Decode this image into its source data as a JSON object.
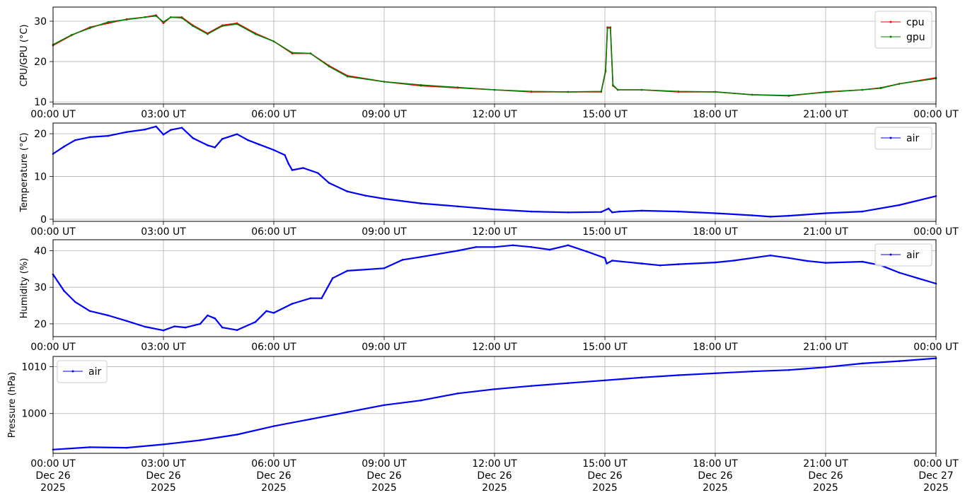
{
  "chart_data": [
    {
      "type": "line",
      "ylabel": "CPU/GPU (°C)",
      "xlim": [
        0,
        24
      ],
      "ylim": [
        9.5,
        33.5
      ],
      "yticks": [
        10,
        20,
        30
      ],
      "xtick_labels": [
        "00:00 UT",
        "03:00 UT",
        "06:00 UT",
        "09:00 UT",
        "12:00 UT",
        "15:00 UT",
        "18:00 UT",
        "21:00 UT",
        "00:00 UT"
      ],
      "xtick_sublabels": [],
      "grid": true,
      "legend_position": "upper-right",
      "series": [
        {
          "name": "cpu",
          "color": "#ff0000",
          "points": [
            [
              0,
              24
            ],
            [
              0.5,
              26.5
            ],
            [
              1,
              28.5
            ],
            [
              1.5,
              29.5
            ],
            [
              2,
              30.5
            ],
            [
              2.5,
              31
            ],
            [
              2.8,
              31.5
            ],
            [
              3,
              29.5
            ],
            [
              3.2,
              31
            ],
            [
              3.5,
              31
            ],
            [
              3.8,
              29
            ],
            [
              4.2,
              27
            ],
            [
              4.6,
              29
            ],
            [
              5,
              29.5
            ],
            [
              5.5,
              27
            ],
            [
              6,
              25
            ],
            [
              6.5,
              22
            ],
            [
              7,
              22
            ],
            [
              7.5,
              19
            ],
            [
              8,
              16.5
            ],
            [
              9,
              15
            ],
            [
              10,
              14
            ],
            [
              11,
              13.5
            ],
            [
              12,
              13
            ],
            [
              13,
              12.5
            ],
            [
              14,
              12.5
            ],
            [
              14.9,
              12.5
            ],
            [
              15.02,
              17.5
            ],
            [
              15.07,
              28.5
            ],
            [
              15.15,
              28.5
            ],
            [
              15.22,
              14
            ],
            [
              15.35,
              13
            ],
            [
              16,
              13
            ],
            [
              17,
              12.5
            ],
            [
              18,
              12.5
            ],
            [
              19,
              11.8
            ],
            [
              20,
              11.5
            ],
            [
              21,
              12.5
            ],
            [
              22,
              13
            ],
            [
              22.5,
              13.5
            ],
            [
              23,
              14.5
            ],
            [
              24,
              16
            ]
          ]
        },
        {
          "name": "gpu",
          "color": "#008000",
          "points": [
            [
              0,
              24.2
            ],
            [
              0.5,
              26.6
            ],
            [
              1,
              28.3
            ],
            [
              1.5,
              29.8
            ],
            [
              2,
              30.4
            ],
            [
              2.5,
              31
            ],
            [
              2.8,
              31.3
            ],
            [
              3,
              29.8
            ],
            [
              3.2,
              31
            ],
            [
              3.5,
              30.8
            ],
            [
              3.8,
              28.8
            ],
            [
              4.2,
              26.8
            ],
            [
              4.6,
              28.8
            ],
            [
              5,
              29.3
            ],
            [
              5.5,
              26.8
            ],
            [
              6,
              25
            ],
            [
              6.5,
              22.2
            ],
            [
              7,
              22
            ],
            [
              7.5,
              18.8
            ],
            [
              8,
              16.3
            ],
            [
              9,
              15
            ],
            [
              10,
              14.2
            ],
            [
              11,
              13.6
            ],
            [
              12,
              13
            ],
            [
              13,
              12.6
            ],
            [
              14,
              12.5
            ],
            [
              14.9,
              12.6
            ],
            [
              15.02,
              17.8
            ],
            [
              15.07,
              28.3
            ],
            [
              15.15,
              28.3
            ],
            [
              15.22,
              14.2
            ],
            [
              15.35,
              13
            ],
            [
              16,
              13
            ],
            [
              17,
              12.6
            ],
            [
              18,
              12.5
            ],
            [
              19,
              11.8
            ],
            [
              20,
              11.6
            ],
            [
              21,
              12.4
            ],
            [
              22,
              13
            ],
            [
              22.5,
              13.4
            ],
            [
              23,
              14.5
            ],
            [
              24,
              15.8
            ]
          ]
        }
      ]
    },
    {
      "type": "line",
      "ylabel": "Temperature (°C)",
      "xlim": [
        0,
        24
      ],
      "ylim": [
        -0.5,
        22.5
      ],
      "yticks": [
        0,
        10,
        20
      ],
      "xtick_labels": [
        "00:00 UT",
        "03:00 UT",
        "06:00 UT",
        "09:00 UT",
        "12:00 UT",
        "15:00 UT",
        "18:00 UT",
        "21:00 UT",
        "00:00 UT"
      ],
      "xtick_sublabels": [],
      "grid": true,
      "legend_position": "upper-right",
      "series": [
        {
          "name": "air",
          "color": "#0000ff",
          "points": [
            [
              0,
              15.3
            ],
            [
              0.3,
              17
            ],
            [
              0.6,
              18.5
            ],
            [
              1,
              19.2
            ],
            [
              1.5,
              19.5
            ],
            [
              2,
              20.4
            ],
            [
              2.5,
              21
            ],
            [
              2.8,
              21.7
            ],
            [
              3,
              19.8
            ],
            [
              3.2,
              20.9
            ],
            [
              3.5,
              21.4
            ],
            [
              3.8,
              19
            ],
            [
              4.2,
              17.3
            ],
            [
              4.4,
              16.8
            ],
            [
              4.6,
              18.8
            ],
            [
              5,
              19.9
            ],
            [
              5.3,
              18.5
            ],
            [
              5.6,
              17.5
            ],
            [
              6,
              16.2
            ],
            [
              6.3,
              15
            ],
            [
              6.4,
              13
            ],
            [
              6.5,
              11.5
            ],
            [
              6.8,
              12
            ],
            [
              7.2,
              10.8
            ],
            [
              7.5,
              8.5
            ],
            [
              8,
              6.5
            ],
            [
              8.5,
              5.5
            ],
            [
              9,
              4.8
            ],
            [
              10,
              3.7
            ],
            [
              11,
              3
            ],
            [
              12,
              2.3
            ],
            [
              13,
              1.8
            ],
            [
              14,
              1.6
            ],
            [
              14.9,
              1.7
            ],
            [
              15.1,
              2.5
            ],
            [
              15.2,
              1.6
            ],
            [
              15.4,
              1.8
            ],
            [
              16,
              2
            ],
            [
              17,
              1.8
            ],
            [
              18,
              1.4
            ],
            [
              19,
              0.9
            ],
            [
              19.5,
              0.6
            ],
            [
              20,
              0.8
            ],
            [
              21,
              1.4
            ],
            [
              22,
              1.8
            ],
            [
              23,
              3.3
            ],
            [
              24,
              5.4
            ]
          ]
        }
      ]
    },
    {
      "type": "line",
      "ylabel": "Humidity (%)",
      "xlim": [
        0,
        24
      ],
      "ylim": [
        16.5,
        43
      ],
      "yticks": [
        20,
        30,
        40
      ],
      "xtick_labels": [
        "00:00 UT",
        "03:00 UT",
        "06:00 UT",
        "09:00 UT",
        "12:00 UT",
        "15:00 UT",
        "18:00 UT",
        "21:00 UT",
        "00:00 UT"
      ],
      "xtick_sublabels": [],
      "grid": true,
      "legend_position": "upper-right",
      "series": [
        {
          "name": "air",
          "color": "#0000ff",
          "points": [
            [
              0,
              33.5
            ],
            [
              0.3,
              29
            ],
            [
              0.6,
              26
            ],
            [
              1,
              23.5
            ],
            [
              1.5,
              22.3
            ],
            [
              2,
              20.8
            ],
            [
              2.5,
              19.2
            ],
            [
              3,
              18.2
            ],
            [
              3.3,
              19.3
            ],
            [
              3.6,
              19
            ],
            [
              4,
              20
            ],
            [
              4.2,
              22.3
            ],
            [
              4.4,
              21.5
            ],
            [
              4.6,
              19
            ],
            [
              5,
              18.3
            ],
            [
              5.5,
              20.5
            ],
            [
              5.8,
              23.5
            ],
            [
              6,
              23
            ],
            [
              6.5,
              25.5
            ],
            [
              7,
              27
            ],
            [
              7.3,
              27
            ],
            [
              7.6,
              32.5
            ],
            [
              8,
              34.5
            ],
            [
              9,
              35.2
            ],
            [
              9.5,
              37.5
            ],
            [
              10,
              38.3
            ],
            [
              11,
              40
            ],
            [
              11.5,
              41
            ],
            [
              12,
              41
            ],
            [
              12.5,
              41.5
            ],
            [
              13,
              41
            ],
            [
              13.5,
              40.3
            ],
            [
              14,
              41.5
            ],
            [
              14.5,
              39.8
            ],
            [
              15,
              38
            ],
            [
              15.05,
              36.5
            ],
            [
              15.2,
              37.3
            ],
            [
              16,
              36.5
            ],
            [
              16.5,
              36
            ],
            [
              17,
              36.3
            ],
            [
              18,
              36.8
            ],
            [
              18.5,
              37.3
            ],
            [
              19.5,
              38.7
            ],
            [
              20,
              38
            ],
            [
              20.5,
              37.2
            ],
            [
              21,
              36.7
            ],
            [
              22,
              37
            ],
            [
              22.5,
              36
            ],
            [
              23,
              34
            ],
            [
              23.5,
              32.5
            ],
            [
              24,
              31
            ]
          ]
        }
      ]
    },
    {
      "type": "line",
      "ylabel": "Pressure (hPa)",
      "xlim": [
        0,
        24
      ],
      "ylim": [
        991.5,
        1012.2
      ],
      "yticks": [
        1000,
        1010
      ],
      "xtick_labels": [
        "00:00 UT",
        "03:00 UT",
        "06:00 UT",
        "09:00 UT",
        "12:00 UT",
        "15:00 UT",
        "18:00 UT",
        "21:00 UT",
        "00:00 UT"
      ],
      "xtick_sublabels": [
        "Dec 26\n2025",
        "Dec 26\n2025",
        "Dec 26\n2025",
        "Dec 26\n2025",
        "Dec 26\n2025",
        "Dec 26\n2025",
        "Dec 26\n2025",
        "Dec 26\n2025",
        "Dec 27\n2025"
      ],
      "grid": true,
      "legend_position": "upper-left",
      "series": [
        {
          "name": "air",
          "color": "#0000ff",
          "points": [
            [
              0,
              992.3
            ],
            [
              1,
              992.8
            ],
            [
              2,
              992.7
            ],
            [
              3,
              993.4
            ],
            [
              4,
              994.3
            ],
            [
              5,
              995.5
            ],
            [
              6,
              997.3
            ],
            [
              7,
              998.8
            ],
            [
              8,
              1000.3
            ],
            [
              9,
              1001.8
            ],
            [
              10,
              1002.8
            ],
            [
              11,
              1004.3
            ],
            [
              12,
              1005.2
            ],
            [
              13,
              1005.9
            ],
            [
              14,
              1006.5
            ],
            [
              15,
              1007.1
            ],
            [
              16,
              1007.7
            ],
            [
              17,
              1008.2
            ],
            [
              18,
              1008.6
            ],
            [
              19,
              1009
            ],
            [
              20,
              1009.3
            ],
            [
              21,
              1009.9
            ],
            [
              22,
              1010.7
            ],
            [
              23,
              1011.2
            ],
            [
              24,
              1011.8
            ]
          ]
        }
      ]
    }
  ]
}
